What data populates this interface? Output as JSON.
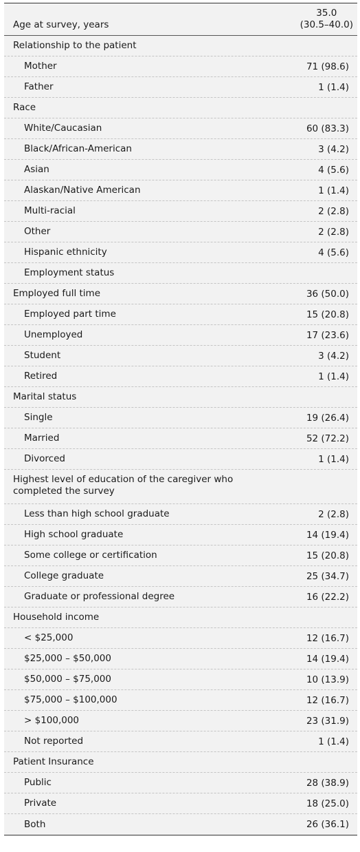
{
  "header": {
    "label": "Age at survey, years",
    "value_line1": "35.0",
    "value_line2": "(30.5–40.0)"
  },
  "rows": [
    {
      "label": "Relationship to the patient",
      "value": "",
      "indent": false
    },
    {
      "label": "Mother",
      "value": "71 (98.6)",
      "indent": true
    },
    {
      "label": "Father",
      "value": "1 (1.4)",
      "indent": true
    },
    {
      "label": "Race",
      "value": "",
      "indent": false
    },
    {
      "label": "White/Caucasian",
      "value": "60 (83.3)",
      "indent": true
    },
    {
      "label": "Black/African-American",
      "value": "3 (4.2)",
      "indent": true
    },
    {
      "label": "Asian",
      "value": "4 (5.6)",
      "indent": true
    },
    {
      "label": "Alaskan/Native American",
      "value": "1 (1.4)",
      "indent": true
    },
    {
      "label": "Multi-racial",
      "value": "2 (2.8)",
      "indent": true
    },
    {
      "label": "Other",
      "value": "2 (2.8)",
      "indent": true
    },
    {
      "label": "Hispanic ethnicity",
      "value": "4 (5.6)",
      "indent": true
    },
    {
      "label": "Employment status",
      "value": "",
      "indent": true
    },
    {
      "label": "Employed full time",
      "value": "36 (50.0)",
      "indent": false
    },
    {
      "label": "Employed part time",
      "value": "15 (20.8)",
      "indent": true
    },
    {
      "label": "Unemployed",
      "value": "17 (23.6)",
      "indent": true
    },
    {
      "label": "Student",
      "value": "3 (4.2)",
      "indent": true
    },
    {
      "label": "Retired",
      "value": "1 (1.4)",
      "indent": true
    },
    {
      "label": "Marital status",
      "value": "",
      "indent": false
    },
    {
      "label": "Single",
      "value": "19 (26.4)",
      "indent": true
    },
    {
      "label": "Married",
      "value": "52 (72.2)",
      "indent": true
    },
    {
      "label": "Divorced",
      "value": "1 (1.4)",
      "indent": true
    },
    {
      "label": "Highest level of education of the caregiver who completed the survey",
      "value": "",
      "indent": false,
      "tall": true
    },
    {
      "label": "Less than high school graduate",
      "value": "2 (2.8)",
      "indent": true
    },
    {
      "label": "High school graduate",
      "value": "14 (19.4)",
      "indent": true
    },
    {
      "label": "Some college or certification",
      "value": "15 (20.8)",
      "indent": true
    },
    {
      "label": "College graduate",
      "value": "25 (34.7)",
      "indent": true
    },
    {
      "label": "Graduate or professional degree",
      "value": "16 (22.2)",
      "indent": true
    },
    {
      "label": "Household income",
      "value": "",
      "indent": false
    },
    {
      "label": "< $25,000",
      "value": "12 (16.7)",
      "indent": true
    },
    {
      "label": "$25,000 – $50,000",
      "value": "14 (19.4)",
      "indent": true
    },
    {
      "label": "$50,000 – $75,000",
      "value": "10 (13.9)",
      "indent": true
    },
    {
      "label": "$75,000 – $100,000",
      "value": "12 (16.7)",
      "indent": true
    },
    {
      "label": "> $100,000",
      "value": "23 (31.9)",
      "indent": true
    },
    {
      "label": "Not reported",
      "value": "1 (1.4)",
      "indent": true
    },
    {
      "label": "Patient Insurance",
      "value": "",
      "indent": false
    },
    {
      "label": "Public",
      "value": "28 (38.9)",
      "indent": true
    },
    {
      "label": "Private",
      "value": "18 (25.0)",
      "indent": true
    },
    {
      "label": "Both",
      "value": "26 (36.1)",
      "indent": true
    }
  ]
}
